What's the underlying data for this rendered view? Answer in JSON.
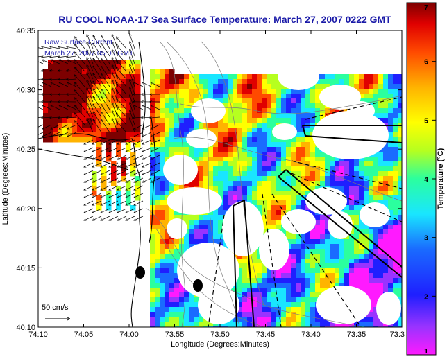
{
  "chart_data": {
    "type": "heatmap",
    "title": "RU COOL  NOAA-17  Sea Surface Temperature:  March 27, 2007 0222 GMT",
    "xlabel": "Longitude (Degrees:Minutes)",
    "ylabel": "Latitude (Degrees:Minutes)",
    "x_ticks": [
      "74:10",
      "74:05",
      "74:00",
      "73:55",
      "73:50",
      "73:45",
      "73:40",
      "73:35",
      "73:3"
    ],
    "y_ticks": [
      "40:35",
      "40:30",
      "40:25",
      "40:20",
      "40:15",
      "40:10"
    ],
    "colorbar": {
      "label": "Temperature (°C)",
      "ticks": [
        "7",
        "6",
        "5",
        "4",
        "3",
        "2",
        "1"
      ],
      "range": [
        1,
        7
      ]
    },
    "legend": {
      "current_title": "Raw Surface Current",
      "current_time": "March 27, 2007 05:00 GMT",
      "scale_label": "50 cm/s"
    },
    "colors": {
      "title": "#1a1aa8",
      "land": "#ffffff",
      "coastline": "#000000",
      "bathymetry": "#7a7a7a"
    },
    "grid": false,
    "projection": "lat-lon"
  }
}
